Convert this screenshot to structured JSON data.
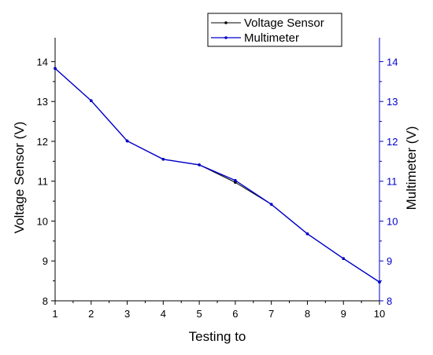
{
  "chart_data": {
    "type": "line",
    "xlabel": "Testing to",
    "ylabel_left": "Voltage Sensor (V)",
    "ylabel_right": "Multimeter (V)",
    "x": [
      1,
      2,
      3,
      4,
      5,
      6,
      7,
      8,
      9,
      10
    ],
    "xlim": [
      1,
      10
    ],
    "ylim": [
      8,
      14.6
    ],
    "xticks": [
      "1",
      "2",
      "3",
      "4",
      "5",
      "6",
      "7",
      "8",
      "9",
      "10"
    ],
    "yticks": [
      "8",
      "9",
      "10",
      "11",
      "12",
      "13",
      "14"
    ],
    "grid": false,
    "legend_position": "top-right",
    "series": [
      {
        "name": "Voltage Sensor",
        "axis": "left",
        "color": "#000000",
        "values": [
          13.83,
          13.02,
          12.01,
          11.55,
          11.41,
          10.97,
          10.42,
          9.68,
          9.06,
          8.47
        ]
      },
      {
        "name": "Multimeter",
        "axis": "right",
        "color": "#0000cc",
        "values": [
          13.83,
          13.02,
          12.01,
          11.55,
          11.41,
          11.02,
          10.42,
          9.68,
          9.06,
          8.47
        ]
      }
    ]
  }
}
